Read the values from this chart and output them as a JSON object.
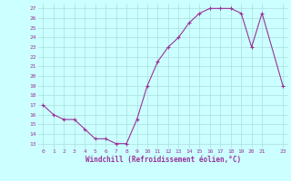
{
  "x": [
    0,
    1,
    2,
    3,
    4,
    5,
    6,
    7,
    8,
    9,
    10,
    11,
    12,
    13,
    14,
    15,
    16,
    17,
    18,
    19,
    20,
    21,
    23
  ],
  "y": [
    17,
    16,
    15.5,
    15.5,
    14.5,
    13.5,
    13.5,
    13,
    13,
    15.5,
    19,
    21.5,
    23,
    24,
    25.5,
    26.5,
    27,
    27,
    27,
    26.5,
    23,
    26.5,
    19
  ],
  "line_color": "#993399",
  "marker": "+",
  "bg_color": "#ccffff",
  "grid_color": "#aadddd",
  "xlabel": "Windchill (Refroidissement éolien,°C)",
  "xlabel_color": "#993399",
  "tick_color": "#993399",
  "xlim": [
    -0.5,
    23.5
  ],
  "ylim": [
    12.5,
    27.5
  ],
  "yticks": [
    13,
    14,
    15,
    16,
    17,
    18,
    19,
    20,
    21,
    22,
    23,
    24,
    25,
    26,
    27
  ],
  "xticks": [
    0,
    1,
    2,
    3,
    4,
    5,
    6,
    7,
    8,
    9,
    10,
    11,
    12,
    13,
    14,
    15,
    16,
    17,
    18,
    19,
    20,
    21,
    23
  ]
}
